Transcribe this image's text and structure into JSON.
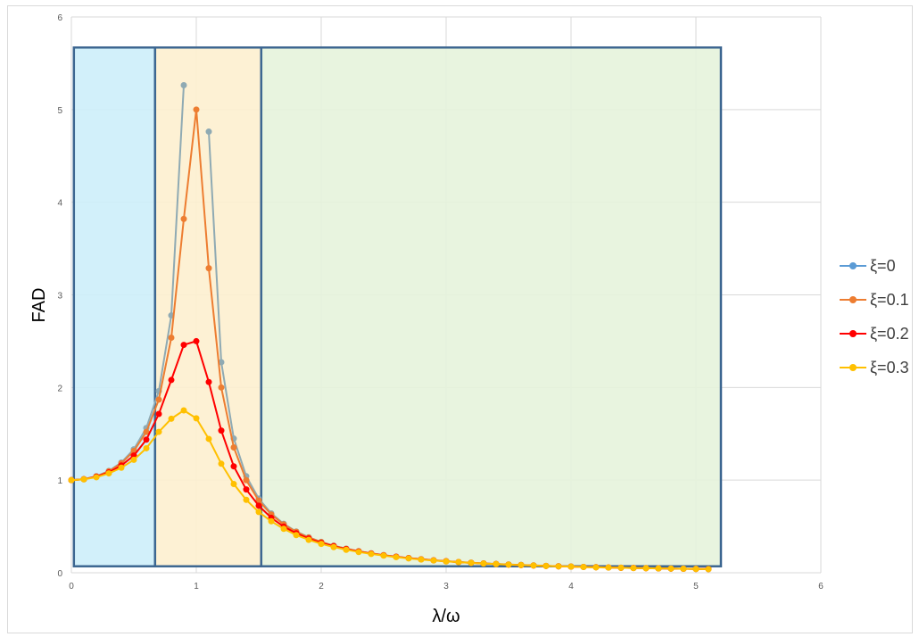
{
  "chart_data": {
    "type": "line",
    "xlabel": "λ/ω",
    "ylabel": "FAD",
    "xlim": [
      0,
      6
    ],
    "ylim": [
      0,
      6
    ],
    "x_ticks": [
      "0",
      "1",
      "2",
      "3",
      "4",
      "5",
      "6"
    ],
    "y_ticks": [
      "0",
      "1",
      "2",
      "3",
      "4",
      "5",
      "6"
    ],
    "grid": true,
    "legend_position": "right",
    "regions": [
      {
        "x_range": [
          0.02,
          0.67
        ],
        "y_range": [
          0.07,
          5.67
        ],
        "fill": "#cdeefa",
        "stroke": "#3d6791"
      },
      {
        "x_range": [
          0.67,
          1.52
        ],
        "y_range": [
          0.07,
          5.67
        ],
        "fill": "#fdf0cf",
        "stroke": "#3d6791"
      },
      {
        "x_range": [
          1.52,
          5.2
        ],
        "y_range": [
          0.07,
          5.67
        ],
        "fill": "#e6f3dc",
        "stroke": "#3d6791"
      }
    ],
    "series": [
      {
        "name": "ξ=0",
        "color": "#5b9bd5",
        "line_color": "#8faab3",
        "x": [
          0,
          0.1,
          0.2,
          0.3,
          0.4,
          0.5,
          0.6,
          0.7,
          0.8,
          0.9,
          null,
          1.1,
          1.2,
          1.3,
          1.4,
          1.5,
          1.6,
          1.7,
          1.8,
          1.9,
          2.0,
          2.1,
          2.2,
          2.3,
          2.4,
          2.5,
          2.6,
          2.7,
          2.8,
          2.9,
          3.0,
          3.1,
          3.2,
          3.3,
          3.4,
          3.5,
          3.6,
          3.7,
          3.8,
          3.9,
          4.0,
          4.1,
          4.2,
          4.3,
          4.4,
          4.5,
          4.6,
          4.7,
          4.8,
          4.9,
          5.0,
          5.1
        ],
        "y": [
          1.0,
          1.01,
          1.042,
          1.099,
          1.19,
          1.333,
          1.563,
          1.961,
          2.778,
          5.263,
          null,
          4.762,
          2.273,
          1.449,
          1.042,
          0.8,
          0.641,
          0.529,
          0.446,
          0.383,
          0.333,
          0.293,
          0.26,
          0.233,
          0.21,
          0.19,
          0.173,
          0.159,
          0.146,
          0.135,
          0.125,
          0.116,
          0.108,
          0.101,
          0.095,
          0.089,
          0.084,
          0.079,
          0.074,
          0.07,
          0.067,
          0.063,
          0.06,
          0.057,
          0.054,
          0.052,
          0.05,
          0.047,
          0.045,
          0.043,
          0.042,
          0.04
        ]
      },
      {
        "name": "ξ=0.1",
        "color": "#ed7d31",
        "line_color": "#ed7d31",
        "x": [
          0,
          0.1,
          0.2,
          0.3,
          0.4,
          0.5,
          0.6,
          0.7,
          0.8,
          0.9,
          1.0,
          1.1,
          1.2,
          1.3,
          1.4,
          1.5,
          1.6,
          1.7,
          1.8,
          1.9,
          2.0,
          2.1,
          2.2,
          2.3,
          2.4,
          2.5,
          2.6,
          2.7,
          2.8,
          2.9,
          3.0,
          3.1,
          3.2,
          3.3,
          3.4,
          3.5,
          3.6,
          3.7,
          3.8,
          3.9,
          4.0,
          4.1,
          4.2,
          4.3,
          4.4,
          4.5,
          4.6,
          4.7,
          4.8,
          4.9,
          5.0,
          5.1
        ],
        "y": [
          1.0,
          1.01,
          1.04,
          1.095,
          1.182,
          1.315,
          1.52,
          1.869,
          2.538,
          3.82,
          5.0,
          3.288,
          2.0,
          1.353,
          0.999,
          0.779,
          0.629,
          0.522,
          0.442,
          0.38,
          0.331,
          0.291,
          0.259,
          0.232,
          0.209,
          0.19,
          0.173,
          0.159,
          0.146,
          0.135,
          0.125,
          0.116,
          0.108,
          0.101,
          0.095,
          0.089,
          0.084,
          0.079,
          0.074,
          0.07,
          0.067,
          0.063,
          0.06,
          0.057,
          0.054,
          0.052,
          0.05,
          0.047,
          0.045,
          0.043,
          0.042,
          0.04
        ]
      },
      {
        "name": "ξ=0.2",
        "color": "#ff0000",
        "line_color": "#ff0000",
        "x": [
          0,
          0.1,
          0.2,
          0.3,
          0.4,
          0.5,
          0.6,
          0.7,
          0.8,
          0.9,
          1.0,
          1.1,
          1.2,
          1.3,
          1.4,
          1.5,
          1.6,
          1.7,
          1.8,
          1.9,
          2.0,
          2.1,
          2.2,
          2.3,
          2.4,
          2.5,
          2.6,
          2.7,
          2.8,
          2.9,
          3.0,
          3.1,
          3.2,
          3.3,
          3.4,
          3.5,
          3.6,
          3.7,
          3.8,
          3.9,
          4.0,
          4.1,
          4.2,
          4.3,
          4.4,
          4.5,
          4.6,
          4.7,
          4.8,
          4.9,
          5.0,
          5.1
        ],
        "y": [
          1.0,
          1.01,
          1.037,
          1.083,
          1.158,
          1.265,
          1.437,
          1.714,
          2.081,
          2.46,
          2.5,
          2.059,
          1.535,
          1.149,
          0.899,
          0.724,
          0.593,
          0.498,
          0.426,
          0.369,
          0.323,
          0.286,
          0.255,
          0.229,
          0.207,
          0.188,
          0.172,
          0.158,
          0.145,
          0.134,
          0.124,
          0.115,
          0.107,
          0.1,
          0.094,
          0.088,
          0.083,
          0.078,
          0.074,
          0.07,
          0.066,
          0.063,
          0.06,
          0.057,
          0.054,
          0.052,
          0.049,
          0.047,
          0.045,
          0.043,
          0.041,
          0.04
        ]
      },
      {
        "name": "ξ=0.3",
        "color": "#ffc000",
        "line_color": "#ffc000",
        "x": [
          0,
          0.1,
          0.2,
          0.3,
          0.4,
          0.5,
          0.6,
          0.7,
          0.8,
          0.9,
          1.0,
          1.1,
          1.2,
          1.3,
          1.4,
          1.5,
          1.6,
          1.7,
          1.8,
          1.9,
          2.0,
          2.1,
          2.2,
          2.3,
          2.4,
          2.5,
          2.6,
          2.7,
          2.8,
          2.9,
          3.0,
          3.1,
          3.2,
          3.3,
          3.4,
          3.5,
          3.6,
          3.7,
          3.8,
          3.9,
          4.0,
          4.1,
          4.2,
          4.3,
          4.4,
          4.5,
          4.6,
          4.7,
          4.8,
          4.9,
          5.0,
          5.1
        ],
        "y": [
          1.0,
          1.009,
          1.031,
          1.073,
          1.134,
          1.219,
          1.344,
          1.521,
          1.663,
          1.753,
          1.667,
          1.445,
          1.177,
          0.958,
          0.787,
          0.656,
          0.556,
          0.474,
          0.407,
          0.355,
          0.312,
          0.277,
          0.248,
          0.224,
          0.203,
          0.185,
          0.169,
          0.155,
          0.143,
          0.133,
          0.123,
          0.115,
          0.107,
          0.1,
          0.094,
          0.088,
          0.083,
          0.078,
          0.073,
          0.069,
          0.066,
          0.062,
          0.059,
          0.056,
          0.054,
          0.051,
          0.049,
          0.047,
          0.045,
          0.043,
          0.041,
          0.039
        ]
      }
    ]
  }
}
